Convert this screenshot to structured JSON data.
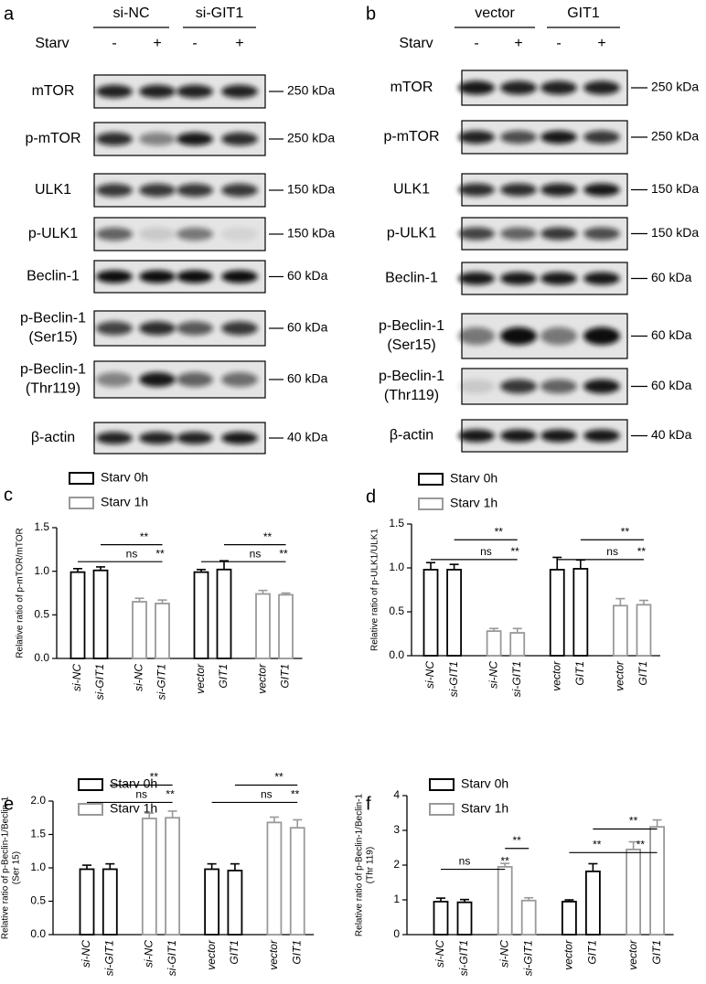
{
  "blots": [
    {
      "panel": "a",
      "groups": [
        "si-NC",
        "si-GIT1"
      ],
      "condition_label": "Starv",
      "conditions": [
        "-",
        "+",
        "-",
        "+"
      ],
      "rows": [
        {
          "protein": [
            "mTOR"
          ],
          "size": "250 kDa"
        },
        {
          "protein": [
            "p-mTOR"
          ],
          "size": "250 kDa"
        },
        {
          "protein": [
            "ULK1"
          ],
          "size": "150 kDa"
        },
        {
          "protein": [
            "p-ULK1"
          ],
          "size": "150 kDa"
        },
        {
          "protein": [
            "Beclin-1"
          ],
          "size": "60 kDa"
        },
        {
          "protein": [
            "p-Beclin-1",
            "(Ser15)"
          ],
          "size": "60 kDa"
        },
        {
          "protein": [
            "p-Beclin-1",
            "(Thr119)"
          ],
          "size": "60 kDa"
        },
        {
          "protein": [
            "β-actin"
          ],
          "size": "40 kDa"
        }
      ]
    },
    {
      "panel": "b",
      "groups": [
        "vector",
        "GIT1"
      ],
      "condition_label": "Starv",
      "conditions": [
        "-",
        "+",
        "-",
        "+"
      ],
      "rows": [
        {
          "protein": [
            "mTOR"
          ],
          "size": "250 kDa"
        },
        {
          "protein": [
            "p-mTOR"
          ],
          "size": "250 kDa"
        },
        {
          "protein": [
            "ULK1"
          ],
          "size": "150 kDa"
        },
        {
          "protein": [
            "p-ULK1"
          ],
          "size": "150 kDa"
        },
        {
          "protein": [
            "Beclin-1"
          ],
          "size": "60 kDa"
        },
        {
          "protein": [
            "p-Beclin-1",
            "(Ser15)"
          ],
          "size": "60 kDa"
        },
        {
          "protein": [
            "p-Beclin-1",
            "(Thr119)"
          ],
          "size": "60 kDa"
        },
        {
          "protein": [
            "β-actin"
          ],
          "size": "40 kDa"
        }
      ]
    }
  ],
  "chart_data": [
    {
      "panel": "c",
      "type": "bar",
      "ylabel": [
        "Relative ratio of p-mTOR/mTOR"
      ],
      "categories": [
        "si-NC",
        "si-GIT1",
        "si-NC",
        "si-GIT1",
        "vector",
        "GIT1",
        "vector",
        "GIT1"
      ],
      "series": [
        {
          "name": "Starv 0h",
          "color": "#000000",
          "values": [
            0.99,
            1.01,
            null,
            null,
            0.99,
            1.02,
            null,
            null
          ],
          "errors": [
            0.04,
            0.04,
            null,
            null,
            0.03,
            0.1,
            null,
            null
          ]
        },
        {
          "name": "Starv 1h",
          "color": "#999999",
          "values": [
            null,
            null,
            0.65,
            0.63,
            null,
            null,
            0.74,
            0.73
          ],
          "errors": [
            null,
            null,
            0.04,
            0.04,
            null,
            null,
            0.04,
            0.02
          ]
        }
      ],
      "ylim": [
        0,
        1.5
      ],
      "yticks": [
        {
          "value": 0,
          "label": "0.0"
        },
        {
          "value": 0.5,
          "label": "0.5"
        },
        {
          "value": 1,
          "label": "1.0"
        },
        {
          "value": 1.5,
          "label": "1.5"
        }
      ],
      "annotations": [
        "ns",
        "**",
        "**",
        "ns",
        "**",
        "**"
      ]
    },
    {
      "panel": "d",
      "type": "bar",
      "ylabel": [
        "Relative ratio of p-ULK1/ULK1"
      ],
      "categories": [
        "si-NC",
        "si-GIT1",
        "si-NC",
        "si-GIT1",
        "vector",
        "GIT1",
        "vector",
        "GIT1"
      ],
      "series": [
        {
          "name": "Starv 0h",
          "color": "#000000",
          "values": [
            0.98,
            0.98,
            null,
            null,
            0.98,
            0.99,
            null,
            null
          ],
          "errors": [
            0.08,
            0.06,
            null,
            null,
            0.14,
            0.1,
            null,
            null
          ]
        },
        {
          "name": "Starv 1h",
          "color": "#999999",
          "values": [
            null,
            null,
            0.28,
            0.26,
            null,
            null,
            0.57,
            0.58
          ],
          "errors": [
            null,
            null,
            0.03,
            0.05,
            null,
            null,
            0.08,
            0.05
          ]
        }
      ],
      "ylim": [
        0,
        1.5
      ],
      "yticks": [
        {
          "value": 0,
          "label": "0.0"
        },
        {
          "value": 0.5,
          "label": "0.5"
        },
        {
          "value": 1,
          "label": "1.0"
        },
        {
          "value": 1.5,
          "label": "1.5"
        }
      ],
      "annotations": [
        "ns",
        "**",
        "**",
        "ns",
        "**",
        "**"
      ]
    },
    {
      "panel": "e",
      "type": "bar",
      "ylabel": [
        "Relative ratio of p-Beclin-1/Beclin-1",
        "(Ser 15)"
      ],
      "categories": [
        "si-NC",
        "si-GIT1",
        "si-NC",
        "si-GIT1",
        "vector",
        "GIT1",
        "vector",
        "GIT1"
      ],
      "series": [
        {
          "name": "Starv 0h",
          "color": "#000000",
          "values": [
            0.98,
            0.98,
            null,
            null,
            0.98,
            0.96,
            null,
            null
          ],
          "errors": [
            0.06,
            0.08,
            null,
            null,
            0.08,
            0.1,
            null,
            null
          ]
        },
        {
          "name": "Starv 1h",
          "color": "#999999",
          "values": [
            null,
            null,
            1.74,
            1.75,
            null,
            null,
            1.68,
            1.6
          ],
          "errors": [
            null,
            null,
            0.08,
            0.1,
            null,
            null,
            0.08,
            0.12
          ]
        }
      ],
      "ylim": [
        0,
        2
      ],
      "yticks": [
        {
          "value": 0,
          "label": "0.0"
        },
        {
          "value": 0.5,
          "label": "0.5"
        },
        {
          "value": 1,
          "label": "1.0"
        },
        {
          "value": 1.5,
          "label": "1.5"
        },
        {
          "value": 2,
          "label": "2.0"
        }
      ],
      "annotations": [
        "ns",
        "**",
        "**",
        "ns",
        "**",
        "**"
      ]
    },
    {
      "panel": "f",
      "type": "bar",
      "ylabel": [
        "Relative ratio of p-Beclin-1/Beclin-1",
        "(Thr 119)"
      ],
      "categories": [
        "si-NC",
        "si-GIT1",
        "si-NC",
        "si-GIT1",
        "vector",
        "GIT1",
        "vector",
        "GIT1"
      ],
      "series": [
        {
          "name": "Starv 0h",
          "color": "#000000",
          "values": [
            0.95,
            0.93,
            null,
            null,
            0.95,
            1.82,
            null,
            null
          ],
          "errors": [
            0.1,
            0.08,
            null,
            null,
            0.05,
            0.22,
            null,
            null
          ]
        },
        {
          "name": "Starv 1h",
          "color": "#999999",
          "values": [
            null,
            null,
            1.95,
            0.98,
            null,
            null,
            2.45,
            3.1
          ],
          "errors": [
            null,
            null,
            0.1,
            0.08,
            null,
            null,
            0.22,
            0.2
          ]
        }
      ],
      "ylim": [
        0,
        4
      ],
      "yticks": [
        0,
        1,
        2,
        3,
        4
      ],
      "annotations": [
        "ns",
        "**",
        "**",
        "**",
        "**",
        "**"
      ]
    }
  ]
}
